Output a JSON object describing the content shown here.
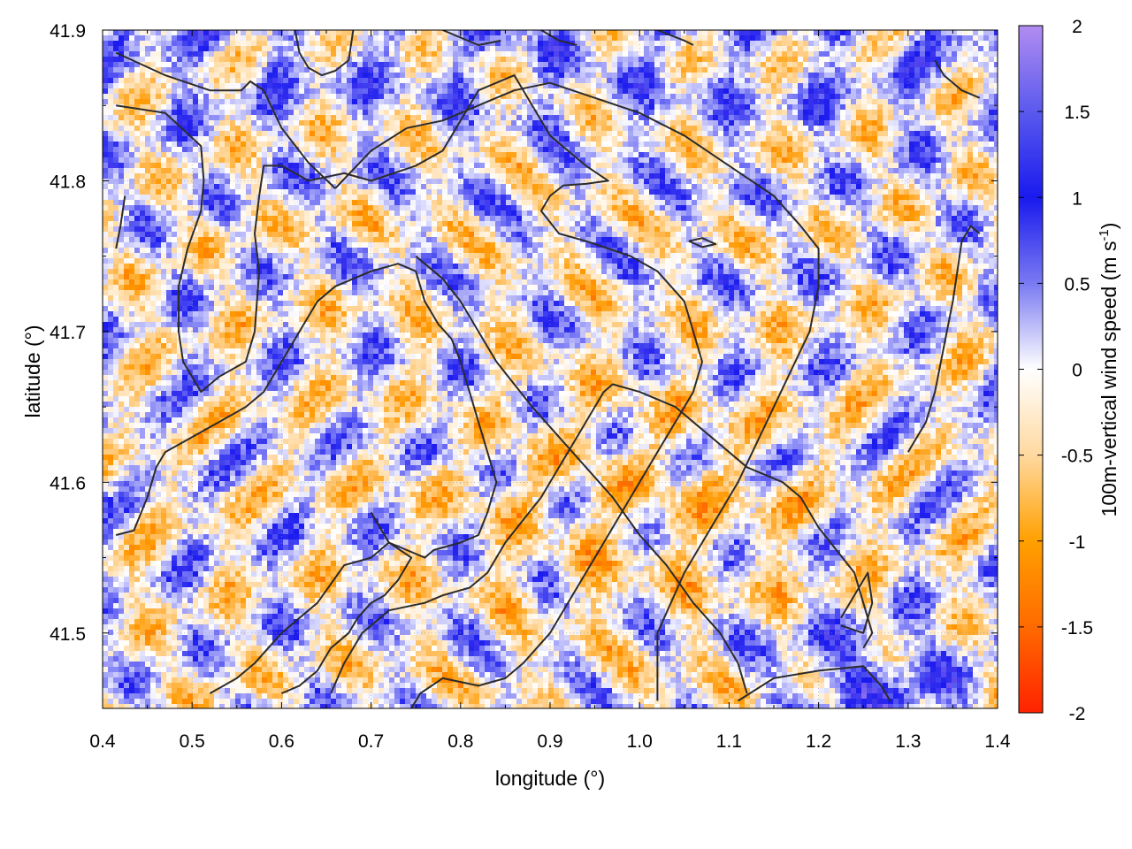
{
  "chart_data": {
    "type": "heatmap",
    "title": "",
    "xlabel": "longitude (°)",
    "ylabel": "latitude (°)",
    "xlim": [
      0.4,
      1.4
    ],
    "ylim": [
      41.45,
      41.9
    ],
    "x_ticks": [
      "0.4",
      "0.5",
      "0.6",
      "0.7",
      "0.8",
      "0.9",
      "1.0",
      "1.1",
      "1.2",
      "1.3",
      "1.4"
    ],
    "y_ticks": [
      "41.5",
      "41.6",
      "41.7",
      "41.8",
      "41.9"
    ],
    "grid": true,
    "colorbar": {
      "label_main": "100m-vertical wind speed (m s",
      "label_sup": "-1",
      "label_close": ")",
      "range": [
        -2,
        2
      ],
      "ticks": [
        "2",
        "1.5",
        "1",
        "0.5",
        "0",
        "-0.5",
        "-1",
        "-1.5",
        "-2"
      ],
      "colors": {
        "max": "#b18cf0",
        "high": "#1a1aee",
        "zero": "#ffffff",
        "low": "#ff9900",
        "min": "#ff2200"
      }
    },
    "field_summary": "Fine-scale alternating updraft (blue) and downdraft (orange) streaks; strongest updrafts along the northern edge and in the south-east corner, broad weak downdraft region in the centre-south.",
    "contour_color": "#2b2b2b",
    "contours": [
      [
        [
          0.415,
          41.885
        ],
        [
          0.47,
          41.87
        ],
        [
          0.52,
          41.86
        ],
        [
          0.555,
          41.86
        ],
        [
          0.565,
          41.866
        ],
        [
          0.58,
          41.86
        ],
        [
          0.6,
          41.835
        ],
        [
          0.63,
          41.812
        ],
        [
          0.66,
          41.795
        ]
      ],
      [
        [
          0.415,
          41.85
        ],
        [
          0.47,
          41.845
        ],
        [
          0.51,
          41.823
        ],
        [
          0.513,
          41.8
        ],
        [
          0.51,
          41.78
        ],
        [
          0.495,
          41.755
        ],
        [
          0.485,
          41.73
        ],
        [
          0.485,
          41.7
        ],
        [
          0.49,
          41.68
        ],
        [
          0.5,
          41.67
        ],
        [
          0.51,
          41.66
        ],
        [
          0.53,
          41.67
        ],
        [
          0.56,
          41.68
        ],
        [
          0.57,
          41.7
        ],
        [
          0.575,
          41.74
        ],
        [
          0.57,
          41.765
        ],
        [
          0.575,
          41.79
        ],
        [
          0.58,
          41.81
        ],
        [
          0.6,
          41.81
        ],
        [
          0.63,
          41.8
        ],
        [
          0.67,
          41.805
        ],
        [
          0.7,
          41.8
        ],
        [
          0.75,
          41.81
        ],
        [
          0.78,
          41.82
        ],
        [
          0.8,
          41.84
        ],
        [
          0.82,
          41.86
        ],
        [
          0.86,
          41.87
        ],
        [
          0.88,
          41.85
        ],
        [
          0.9,
          41.83
        ],
        [
          0.92,
          41.82
        ],
        [
          0.94,
          41.81
        ],
        [
          0.965,
          41.8
        ],
        [
          0.94,
          41.798
        ],
        [
          0.915,
          41.797
        ],
        [
          0.9,
          41.79
        ],
        [
          0.89,
          41.78
        ],
        [
          0.91,
          41.765
        ],
        [
          0.94,
          41.76
        ],
        [
          0.965,
          41.755
        ],
        [
          0.99,
          41.75
        ],
        [
          1.02,
          41.74
        ],
        [
          1.05,
          41.72
        ],
        [
          1.06,
          41.7
        ],
        [
          1.07,
          41.68
        ],
        [
          1.06,
          41.66
        ],
        [
          1.04,
          41.64
        ],
        [
          1.02,
          41.62
        ],
        [
          1.0,
          41.6
        ],
        [
          0.98,
          41.58
        ],
        [
          0.95,
          41.55
        ],
        [
          0.92,
          41.52
        ],
        [
          0.9,
          41.5
        ],
        [
          0.87,
          41.48
        ],
        [
          0.85,
          41.47
        ],
        [
          0.82,
          41.465
        ],
        [
          0.78,
          41.47
        ],
        [
          0.755,
          41.46
        ],
        [
          0.745,
          41.45
        ]
      ],
      [
        [
          0.415,
          41.565
        ],
        [
          0.435,
          41.568
        ],
        [
          0.45,
          41.59
        ],
        [
          0.46,
          41.61
        ],
        [
          0.47,
          41.62
        ],
        [
          0.5,
          41.63
        ],
        [
          0.53,
          41.64
        ],
        [
          0.56,
          41.65
        ],
        [
          0.58,
          41.66
        ],
        [
          0.6,
          41.68
        ],
        [
          0.62,
          41.7
        ],
        [
          0.64,
          41.72
        ],
        [
          0.66,
          41.73
        ],
        [
          0.7,
          41.74
        ],
        [
          0.73,
          41.745
        ],
        [
          0.75,
          41.74
        ],
        [
          0.76,
          41.72
        ],
        [
          0.775,
          41.705
        ],
        [
          0.79,
          41.695
        ],
        [
          0.8,
          41.68
        ],
        [
          0.81,
          41.66
        ],
        [
          0.82,
          41.64
        ],
        [
          0.83,
          41.62
        ],
        [
          0.84,
          41.6
        ],
        [
          0.83,
          41.58
        ],
        [
          0.82,
          41.565
        ],
        [
          0.8,
          41.56
        ],
        [
          0.77,
          41.555
        ],
        [
          0.76,
          41.55
        ],
        [
          0.74,
          41.555
        ],
        [
          0.72,
          41.56
        ],
        [
          0.71,
          41.57
        ],
        [
          0.7,
          41.58
        ]
      ],
      [
        [
          0.52,
          41.46
        ],
        [
          0.55,
          41.47
        ],
        [
          0.57,
          41.48
        ],
        [
          0.6,
          41.5
        ],
        [
          0.62,
          41.51
        ],
        [
          0.64,
          41.52
        ],
        [
          0.67,
          41.545
        ],
        [
          0.7,
          41.55
        ],
        [
          0.72,
          41.56
        ],
        [
          0.745,
          41.55
        ],
        [
          0.73,
          41.535
        ],
        [
          0.715,
          41.525
        ],
        [
          0.7,
          41.52
        ],
        [
          0.685,
          41.51
        ],
        [
          0.675,
          41.5
        ],
        [
          0.655,
          41.49
        ],
        [
          0.64,
          41.475
        ],
        [
          0.62,
          41.465
        ],
        [
          0.6,
          41.46
        ]
      ],
      [
        [
          0.655,
          41.46
        ],
        [
          0.67,
          41.48
        ],
        [
          0.69,
          41.5
        ],
        [
          0.72,
          41.515
        ],
        [
          0.76,
          41.52
        ],
        [
          0.78,
          41.525
        ],
        [
          0.81,
          41.53
        ],
        [
          0.83,
          41.54
        ],
        [
          0.85,
          41.56
        ],
        [
          0.87,
          41.575
        ],
        [
          0.89,
          41.59
        ],
        [
          0.91,
          41.61
        ],
        [
          0.93,
          41.63
        ],
        [
          0.95,
          41.65
        ],
        [
          0.96,
          41.66
        ],
        [
          0.97,
          41.665
        ],
        [
          1.0,
          41.66
        ],
        [
          1.02,
          41.655
        ],
        [
          1.04,
          41.65
        ],
        [
          1.06,
          41.64
        ],
        [
          1.08,
          41.63
        ],
        [
          1.1,
          41.62
        ],
        [
          1.12,
          41.61
        ],
        [
          1.14,
          41.605
        ],
        [
          1.16,
          41.6
        ],
        [
          1.18,
          41.59
        ],
        [
          1.2,
          41.57
        ],
        [
          1.22,
          41.555
        ],
        [
          1.24,
          41.54
        ],
        [
          1.25,
          41.52
        ],
        [
          1.26,
          41.5
        ],
        [
          1.25,
          41.49
        ]
      ],
      [
        [
          0.66,
          41.795
        ],
        [
          0.7,
          41.82
        ],
        [
          0.74,
          41.835
        ],
        [
          0.78,
          41.84
        ],
        [
          0.82,
          41.85
        ],
        [
          0.86,
          41.86
        ],
        [
          0.9,
          41.865
        ],
        [
          0.95,
          41.855
        ],
        [
          1.0,
          41.845
        ],
        [
          1.05,
          41.83
        ],
        [
          1.1,
          41.81
        ],
        [
          1.15,
          41.79
        ],
        [
          1.18,
          41.77
        ],
        [
          1.2,
          41.755
        ],
        [
          1.2,
          41.73
        ],
        [
          1.19,
          41.7
        ],
        [
          1.17,
          41.675
        ],
        [
          1.15,
          41.65
        ],
        [
          1.13,
          41.625
        ],
        [
          1.11,
          41.6
        ],
        [
          1.09,
          41.58
        ],
        [
          1.07,
          41.56
        ],
        [
          1.05,
          41.54
        ],
        [
          1.035,
          41.52
        ],
        [
          1.02,
          41.5
        ],
        [
          1.02,
          41.48
        ],
        [
          1.02,
          41.455
        ]
      ],
      [
        [
          0.75,
          41.75
        ],
        [
          0.78,
          41.735
        ],
        [
          0.8,
          41.72
        ],
        [
          0.82,
          41.7
        ],
        [
          0.84,
          41.68
        ],
        [
          0.86,
          41.665
        ],
        [
          0.88,
          41.65
        ],
        [
          0.91,
          41.63
        ],
        [
          0.94,
          41.61
        ],
        [
          0.97,
          41.59
        ],
        [
          1.0,
          41.565
        ],
        [
          1.03,
          41.545
        ],
        [
          1.06,
          41.52
        ],
        [
          1.09,
          41.5
        ],
        [
          1.11,
          41.48
        ],
        [
          1.12,
          41.46
        ]
      ],
      [
        [
          1.11,
          41.455
        ],
        [
          1.15,
          41.47
        ],
        [
          1.2,
          41.475
        ],
        [
          1.25,
          41.478
        ],
        [
          1.27,
          41.465
        ],
        [
          1.28,
          41.455
        ]
      ],
      [
        [
          1.225,
          41.505
        ],
        [
          1.25,
          41.5
        ],
        [
          1.26,
          41.52
        ],
        [
          1.255,
          41.54
        ],
        [
          1.245,
          41.53
        ],
        [
          1.235,
          41.52
        ],
        [
          1.225,
          41.51
        ]
      ],
      [
        [
          1.055,
          41.76
        ],
        [
          1.07,
          41.762
        ],
        [
          1.085,
          41.758
        ],
        [
          1.07,
          41.756
        ],
        [
          1.055,
          41.76
        ]
      ],
      [
        [
          1.3,
          41.62
        ],
        [
          1.32,
          41.64
        ],
        [
          1.33,
          41.66
        ],
        [
          1.34,
          41.69
        ],
        [
          1.35,
          41.72
        ],
        [
          1.355,
          41.74
        ],
        [
          1.36,
          41.76
        ],
        [
          1.37,
          41.77
        ],
        [
          1.38,
          41.765
        ]
      ],
      [
        [
          1.33,
          41.88
        ],
        [
          1.34,
          41.87
        ],
        [
          1.36,
          41.86
        ],
        [
          1.38,
          41.855
        ]
      ],
      [
        [
          0.415,
          41.755
        ],
        [
          0.42,
          41.77
        ],
        [
          0.425,
          41.79
        ]
      ],
      [
        [
          0.78,
          41.9
        ],
        [
          0.8,
          41.895
        ],
        [
          0.82,
          41.89
        ],
        [
          0.845,
          41.893
        ]
      ],
      [
        [
          0.89,
          41.9
        ],
        [
          0.91,
          41.893
        ],
        [
          0.93,
          41.89
        ]
      ],
      [
        [
          1.02,
          41.9
        ],
        [
          1.05,
          41.893
        ],
        [
          1.06,
          41.89
        ]
      ],
      [
        [
          0.615,
          41.9
        ],
        [
          0.62,
          41.885
        ],
        [
          0.63,
          41.875
        ],
        [
          0.645,
          41.87
        ],
        [
          0.66,
          41.873
        ],
        [
          0.675,
          41.88
        ],
        [
          0.68,
          41.9
        ]
      ]
    ]
  }
}
